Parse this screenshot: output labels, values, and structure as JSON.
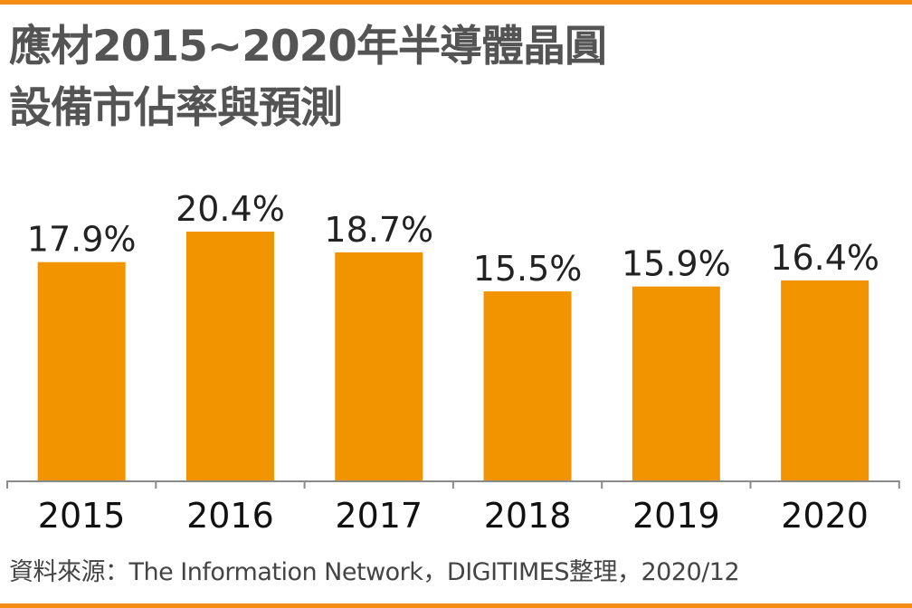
{
  "chart_data": {
    "type": "bar",
    "title_lines": [
      "應材2015~2020年半導體晶圓",
      "設備市佔率與預測"
    ],
    "categories": [
      "2015",
      "2016",
      "2017",
      "2018",
      "2019",
      "2020"
    ],
    "values": [
      17.9,
      20.4,
      18.7,
      15.5,
      15.9,
      16.4
    ],
    "value_labels": [
      "17.9%",
      "20.4%",
      "18.7%",
      "15.5%",
      "15.9%",
      "16.4%"
    ],
    "unit": "%",
    "ylim": [
      0,
      20.4
    ],
    "grid": false,
    "bar_color": "#f29400",
    "source": "資料來源：The Information Network，DIGITIMES整理，2020/12"
  },
  "colors": {
    "accent_border": "#f28c12",
    "title": "#545454",
    "axis": "#8a8a8a"
  }
}
